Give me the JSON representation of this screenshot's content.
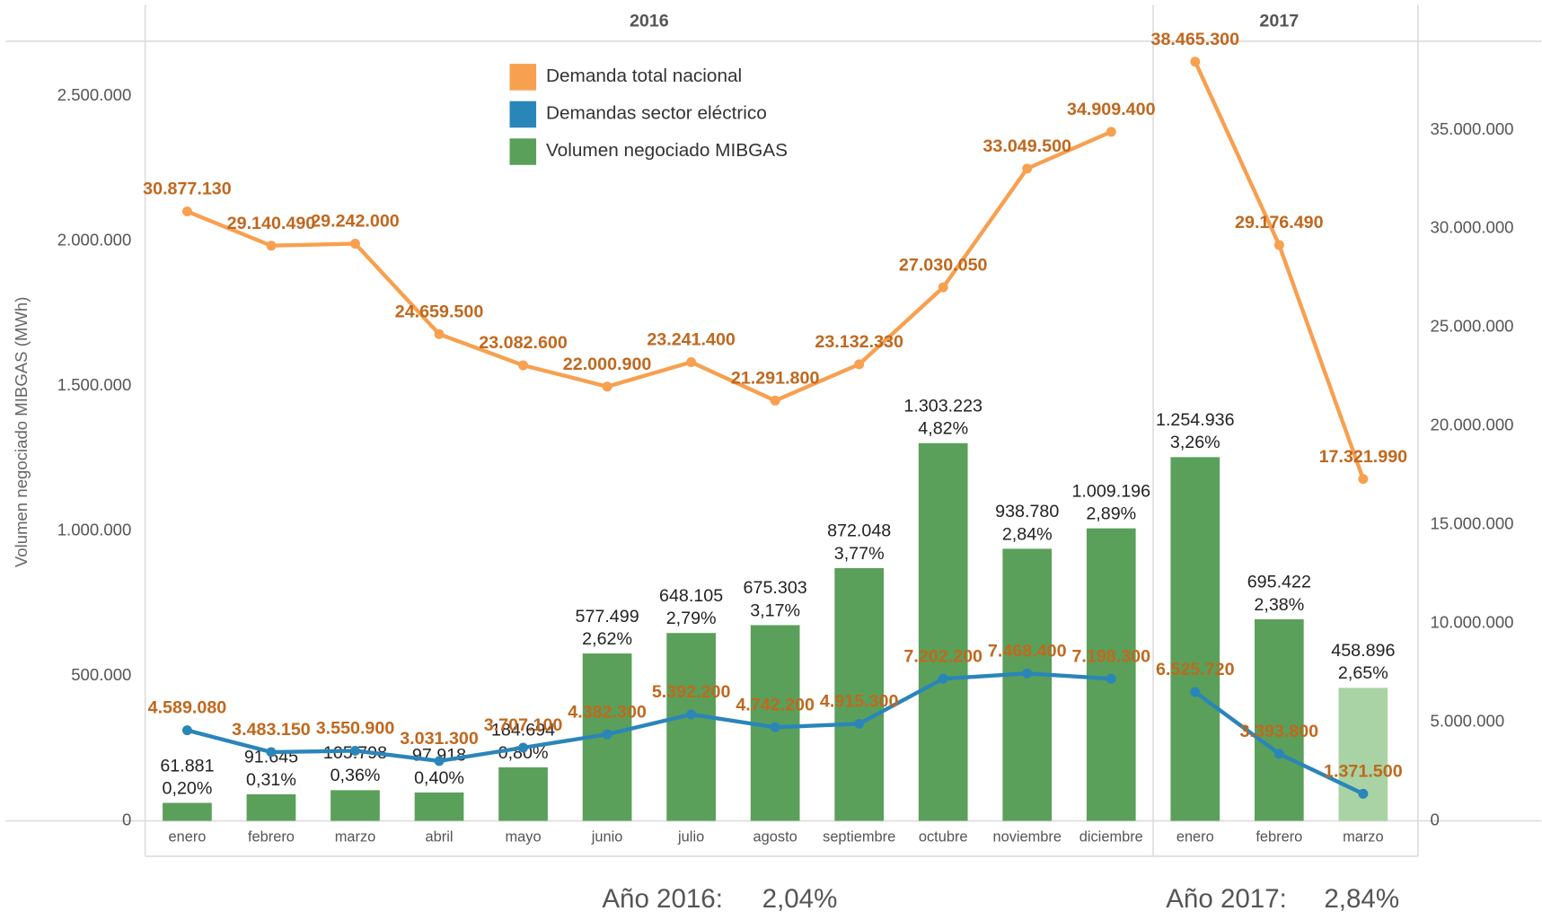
{
  "chart_data": {
    "type": "combo",
    "y_axis_label": "Volumen negociado MIBGAS (MWh)",
    "panes": [
      {
        "title": "2016",
        "categories": [
          "enero",
          "febrero",
          "marzo",
          "abril",
          "mayo",
          "junio",
          "julio",
          "agosto",
          "septiembre",
          "octubre",
          "noviembre",
          "diciembre"
        ]
      },
      {
        "title": "2017",
        "categories": [
          "enero",
          "febrero",
          "marzo"
        ]
      }
    ],
    "ylim": [
      0,
      2690000
    ],
    "yticks": [
      0,
      {
        "value": 500000,
        "label": "500.000"
      },
      {
        "value": 1000000,
        "label": "1.000.000"
      },
      {
        "value": 1500000,
        "label": "1.500.000"
      },
      {
        "value": 2000000,
        "label": "2.000.000"
      },
      {
        "value": 2500000,
        "label": "2.500.000"
      }
    ],
    "y2lim": [
      0,
      39500000
    ],
    "y2ticks": [
      0,
      {
        "value": 5000000,
        "label": "5.000.000"
      },
      {
        "value": 10000000,
        "label": "10.000.000"
      },
      {
        "value": 15000000,
        "label": "15.000.000"
      },
      {
        "value": 20000000,
        "label": "20.000.000"
      },
      {
        "value": 25000000,
        "label": "25.000.000"
      },
      {
        "value": 30000000,
        "label": "30.000.000"
      },
      {
        "value": 35000000,
        "label": "35.000.000"
      }
    ],
    "series": [
      {
        "name": "Demanda total nacional",
        "type": "line",
        "axis": "y2",
        "color": "#f7a050",
        "label_color": "#c0681e",
        "values": [
          30877130,
          29140490,
          29242000,
          24659500,
          23082600,
          22000900,
          23241400,
          21291800,
          23132330,
          27030050,
          33049500,
          34909400,
          38465300,
          29176490,
          17321990
        ],
        "value_labels": [
          "30.877.130",
          "29.140.490",
          "29.242.000",
          "24.659.500",
          "23.082.600",
          "22.000.900",
          "23.241.400",
          "21.291.800",
          "23.132.330",
          "27.030.050",
          "33.049.500",
          "34.909.400",
          "38.465.300",
          "29.176.490",
          "17.321.990"
        ]
      },
      {
        "name": "Demandas sector eléctrico",
        "type": "line",
        "axis": "y2",
        "color": "#2a85b9",
        "label_color": "#c0681e",
        "values": [
          4589080,
          3483150,
          3550900,
          3031300,
          3707100,
          4382300,
          5392200,
          4742200,
          4915300,
          7202200,
          7468400,
          7198300,
          6525720,
          3393800,
          1371500
        ],
        "value_labels": [
          "4.589.080",
          "3.483.150",
          "3.550.900",
          "3.031.300",
          "3.707.100",
          "4.382.300",
          "5.392.200",
          "4.742.200",
          "4.915.300",
          "7.202.200",
          "7.468.400",
          "7.198.300",
          "6.525.720",
          "3.393.800",
          "1.371.500"
        ]
      },
      {
        "name": "Volumen negociado MIBGAS",
        "type": "bar",
        "axis": "y",
        "color": "#5aa05a",
        "colors": [
          "#5aa05a",
          "#5aa05a",
          "#5aa05a",
          "#5aa05a",
          "#5aa05a",
          "#5aa05a",
          "#5aa05a",
          "#5aa05a",
          "#5aa05a",
          "#5aa05a",
          "#5aa05a",
          "#5aa05a",
          "#5aa05a",
          "#5aa05a",
          "#a9d3a4"
        ],
        "values": [
          61881,
          91645,
          105798,
          97918,
          184694,
          577499,
          648105,
          675303,
          872048,
          1303223,
          938780,
          1009196,
          1254936,
          695422,
          458896
        ],
        "value_labels": [
          "61.881",
          "91.645",
          "105.798",
          "97.918",
          "184.694",
          "577.499",
          "648.105",
          "675.303",
          "872.048",
          "1.303.223",
          "938.780",
          "1.009.196",
          "1.254.936",
          "695.422",
          "458.896"
        ],
        "percent_labels": [
          "0,20%",
          "0,31%",
          "0,36%",
          "0,40%",
          "0,80%",
          "2,62%",
          "2,79%",
          "3,17%",
          "3,77%",
          "4,82%",
          "2,84%",
          "2,89%",
          "3,26%",
          "2,38%",
          "2,65%"
        ]
      }
    ],
    "footer": [
      {
        "label": "Año 2016:",
        "value_label": "2,04%"
      },
      {
        "label": "Año 2017:",
        "value_label": "2,84%"
      }
    ]
  }
}
